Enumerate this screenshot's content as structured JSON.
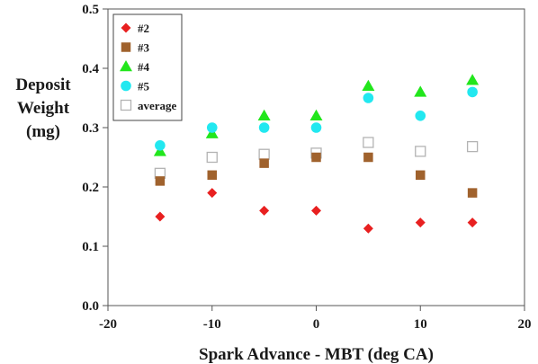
{
  "chart_data": {
    "type": "scatter",
    "title": "",
    "xlabel": "Spark Advance - MBT (deg CA)",
    "ylabel_lines": [
      "Deposit",
      "Weight",
      "(mg)"
    ],
    "xlim": [
      -20,
      20
    ],
    "ylim": [
      0.0,
      0.5
    ],
    "x_ticks": [
      -20,
      -10,
      0,
      10,
      20
    ],
    "y_ticks": [
      "0.0",
      "0.1",
      "0.2",
      "0.3",
      "0.4",
      "0.5"
    ],
    "grid": false,
    "legend_position": "top-left",
    "x": [
      -15,
      -10,
      -5,
      0,
      5,
      10,
      15
    ],
    "series": [
      {
        "name": "#2",
        "marker": "diamond",
        "color": "#e82020",
        "values": [
          0.15,
          0.19,
          0.16,
          0.16,
          0.13,
          0.14,
          0.14
        ]
      },
      {
        "name": "#3",
        "marker": "square",
        "color": "#a0622d",
        "values": [
          0.21,
          0.22,
          0.24,
          0.25,
          0.25,
          0.22,
          0.19
        ]
      },
      {
        "name": "#4",
        "marker": "triangle",
        "color": "#22e61c",
        "values": [
          0.26,
          0.29,
          0.32,
          0.32,
          0.37,
          0.36,
          0.38
        ]
      },
      {
        "name": "#5",
        "marker": "circle",
        "color": "#22e8f0",
        "values": [
          0.27,
          0.3,
          0.3,
          0.3,
          0.35,
          0.32,
          0.36
        ]
      },
      {
        "name": "average",
        "marker": "hollow-square",
        "color": "#b3b3b3",
        "values": [
          0.223,
          0.25,
          0.255,
          0.257,
          0.275,
          0.26,
          0.268
        ]
      }
    ]
  }
}
